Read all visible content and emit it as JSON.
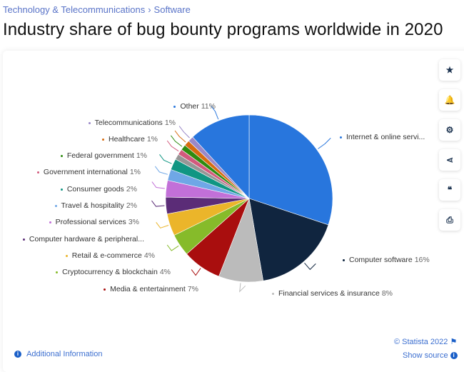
{
  "breadcrumb": {
    "items": [
      "Technology & Telecommunications",
      "Software"
    ]
  },
  "title": "Industry share of bug bounty programs worldwide in 2020",
  "side_buttons": [
    {
      "icon": "star-icon",
      "glyph": "★"
    },
    {
      "icon": "bell-icon",
      "glyph": "🔔"
    },
    {
      "icon": "gear-icon",
      "glyph": "⚙"
    },
    {
      "icon": "share-icon",
      "glyph": "⋖"
    },
    {
      "icon": "quote-icon",
      "glyph": "❝"
    },
    {
      "icon": "print-icon",
      "glyph": "⎙"
    }
  ],
  "footer": {
    "copyright": "© Statista 2022",
    "show_source": "Show source",
    "additional_info": "Additional Information"
  },
  "chart_data": {
    "type": "pie",
    "title": "Industry share of bug bounty programs worldwide in 2020",
    "slices": [
      {
        "name": "Internet & online servi...",
        "label": "",
        "value": 28,
        "color": "#2876dd"
      },
      {
        "name": "Computer software",
        "label": "16%",
        "value": 16,
        "color": "#10253f"
      },
      {
        "name": "Financial services & insurance",
        "label": "8%",
        "value": 8,
        "color": "#bbbbbb"
      },
      {
        "name": "Media & entertainment",
        "label": "7%",
        "value": 7,
        "color": "#a90e0e"
      },
      {
        "name": "Cryptocurrency & blockchain",
        "label": "4%",
        "value": 4,
        "color": "#86bb2a"
      },
      {
        "name": "Retail & e-commerce",
        "label": "4%",
        "value": 4,
        "color": "#ebb52a"
      },
      {
        "name": "Computer hardware & peripheral...",
        "label": "",
        "value": 3,
        "color": "#5b2c77"
      },
      {
        "name": "Professional services",
        "label": "3%",
        "value": 3,
        "color": "#c270d8"
      },
      {
        "name": "Travel & hospitality",
        "label": "2%",
        "value": 2,
        "color": "#6fa7e6"
      },
      {
        "name": "Consumer goods",
        "label": "2%",
        "value": 2,
        "color": "#109683"
      },
      {
        "name": "",
        "label": "",
        "value": 1,
        "color": "#969696"
      },
      {
        "name": "Government international",
        "label": "1%",
        "value": 1,
        "color": "#d25a7d"
      },
      {
        "name": "Federal government",
        "label": "1%",
        "value": 1,
        "color": "#2e8b10"
      },
      {
        "name": "Healthcare",
        "label": "1%",
        "value": 1,
        "color": "#d66b10"
      },
      {
        "name": "Telecommunications",
        "label": "1%",
        "value": 1,
        "color": "#9a88c8"
      },
      {
        "name": "Other",
        "label": "11%",
        "value": 11,
        "color": "#2876dd"
      }
    ]
  }
}
